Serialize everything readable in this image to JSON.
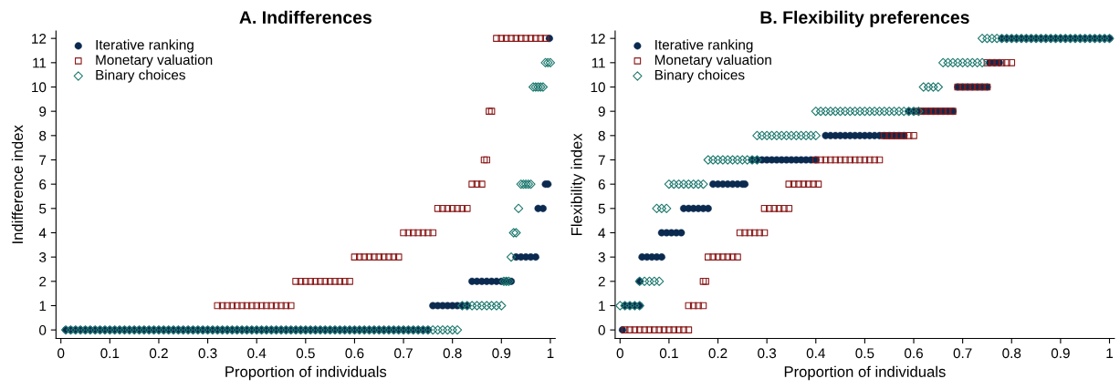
{
  "chart_data": [
    {
      "type": "scatter",
      "title": "A. Indifferences",
      "xlabel": "Proportion of individuals",
      "ylabel": "Indifference index",
      "xlim": [
        -0.01,
        1.01
      ],
      "ylim": [
        -0.35,
        12.3
      ],
      "xticks": [
        0,
        0.1,
        0.2,
        0.3,
        0.4,
        0.5,
        0.6,
        0.7,
        0.8,
        0.9,
        1
      ],
      "yticks": [
        0,
        1,
        2,
        3,
        4,
        5,
        6,
        7,
        8,
        9,
        10,
        11,
        12
      ],
      "grid": false,
      "legend": "top left",
      "series": [
        {
          "name": "Iterative ranking",
          "color": "#0b2a50",
          "marker": "circle",
          "x": [
            0.01,
            0.02,
            0.03,
            0.04,
            0.05,
            0.06,
            0.07,
            0.08,
            0.09,
            0.1,
            0.11,
            0.12,
            0.13,
            0.14,
            0.15,
            0.16,
            0.17,
            0.18,
            0.19,
            0.2,
            0.21,
            0.22,
            0.23,
            0.24,
            0.25,
            0.26,
            0.27,
            0.28,
            0.29,
            0.3,
            0.31,
            0.32,
            0.33,
            0.34,
            0.35,
            0.36,
            0.37,
            0.38,
            0.39,
            0.4,
            0.41,
            0.42,
            0.43,
            0.44,
            0.45,
            0.46,
            0.47,
            0.48,
            0.49,
            0.5,
            0.51,
            0.52,
            0.53,
            0.54,
            0.55,
            0.56,
            0.57,
            0.58,
            0.59,
            0.6,
            0.61,
            0.62,
            0.63,
            0.64,
            0.65,
            0.66,
            0.67,
            0.68,
            0.69,
            0.7,
            0.71,
            0.72,
            0.73,
            0.74,
            0.75,
            0.76,
            0.77,
            0.78,
            0.79,
            0.8,
            0.81,
            0.82,
            0.83,
            0.84,
            0.85,
            0.86,
            0.87,
            0.88,
            0.89,
            0.9,
            0.91,
            0.92,
            0.93,
            0.94,
            0.95,
            0.96,
            0.97,
            0.975,
            0.985,
            0.99,
            0.995,
            0.998
          ],
          "values": [
            0,
            0,
            0,
            0,
            0,
            0,
            0,
            0,
            0,
            0,
            0,
            0,
            0,
            0,
            0,
            0,
            0,
            0,
            0,
            0,
            0,
            0,
            0,
            0,
            0,
            0,
            0,
            0,
            0,
            0,
            0,
            0,
            0,
            0,
            0,
            0,
            0,
            0,
            0,
            0,
            0,
            0,
            0,
            0,
            0,
            0,
            0,
            0,
            0,
            0,
            0,
            0,
            0,
            0,
            0,
            0,
            0,
            0,
            0,
            0,
            0,
            0,
            0,
            0,
            0,
            0,
            0,
            0,
            0,
            0,
            0,
            0,
            0,
            0,
            0,
            1,
            1,
            1,
            1,
            1,
            1,
            1,
            1,
            2,
            2,
            2,
            2,
            2,
            2,
            2,
            2,
            2,
            3,
            3,
            3,
            3,
            3,
            5,
            5,
            6,
            6,
            12
          ]
        },
        {
          "name": "Monetary valuation",
          "color": "#8b1a1a",
          "marker": "square",
          "x": [
            0.32,
            0.33,
            0.34,
            0.35,
            0.36,
            0.37,
            0.38,
            0.39,
            0.4,
            0.41,
            0.42,
            0.43,
            0.44,
            0.45,
            0.46,
            0.47,
            0.48,
            0.49,
            0.5,
            0.51,
            0.52,
            0.53,
            0.54,
            0.55,
            0.56,
            0.57,
            0.58,
            0.59,
            0.6,
            0.61,
            0.62,
            0.63,
            0.64,
            0.65,
            0.66,
            0.67,
            0.68,
            0.69,
            0.7,
            0.71,
            0.72,
            0.73,
            0.74,
            0.75,
            0.76,
            0.77,
            0.78,
            0.79,
            0.8,
            0.81,
            0.82,
            0.83,
            0.84,
            0.85,
            0.86,
            0.865,
            0.87,
            0.875,
            0.88,
            0.89,
            0.9,
            0.91,
            0.92,
            0.93,
            0.94,
            0.95,
            0.96,
            0.97,
            0.98,
            0.99
          ],
          "values": [
            1,
            1,
            1,
            1,
            1,
            1,
            1,
            1,
            1,
            1,
            1,
            1,
            1,
            1,
            1,
            1,
            2,
            2,
            2,
            2,
            2,
            2,
            2,
            2,
            2,
            2,
            2,
            2,
            3,
            3,
            3,
            3,
            3,
            3,
            3,
            3,
            3,
            3,
            4,
            4,
            4,
            4,
            4,
            4,
            4,
            5,
            5,
            5,
            5,
            5,
            5,
            5,
            6,
            6,
            6,
            7,
            7,
            9,
            9,
            12,
            12,
            12,
            12,
            12,
            12,
            12,
            12,
            12,
            12,
            12
          ]
        },
        {
          "name": "Binary choices",
          "color": "#1f7a70",
          "marker": "diamond",
          "x": [
            0.01,
            0.02,
            0.03,
            0.04,
            0.05,
            0.06,
            0.07,
            0.08,
            0.09,
            0.1,
            0.11,
            0.12,
            0.13,
            0.14,
            0.15,
            0.16,
            0.17,
            0.18,
            0.19,
            0.2,
            0.21,
            0.22,
            0.23,
            0.24,
            0.25,
            0.26,
            0.27,
            0.28,
            0.29,
            0.3,
            0.31,
            0.32,
            0.33,
            0.34,
            0.35,
            0.36,
            0.37,
            0.38,
            0.39,
            0.4,
            0.41,
            0.42,
            0.43,
            0.44,
            0.45,
            0.46,
            0.47,
            0.48,
            0.49,
            0.5,
            0.51,
            0.52,
            0.53,
            0.54,
            0.55,
            0.56,
            0.57,
            0.58,
            0.59,
            0.6,
            0.61,
            0.62,
            0.63,
            0.64,
            0.65,
            0.66,
            0.67,
            0.68,
            0.69,
            0.7,
            0.71,
            0.72,
            0.73,
            0.74,
            0.75,
            0.76,
            0.77,
            0.78,
            0.79,
            0.8,
            0.81,
            0.82,
            0.83,
            0.84,
            0.85,
            0.86,
            0.87,
            0.88,
            0.89,
            0.9,
            0.905,
            0.91,
            0.915,
            0.92,
            0.925,
            0.93,
            0.935,
            0.94,
            0.945,
            0.95,
            0.955,
            0.96,
            0.965,
            0.97,
            0.975,
            0.98,
            0.985,
            0.99,
            0.995,
            1.0
          ],
          "values": [
            0,
            0,
            0,
            0,
            0,
            0,
            0,
            0,
            0,
            0,
            0,
            0,
            0,
            0,
            0,
            0,
            0,
            0,
            0,
            0,
            0,
            0,
            0,
            0,
            0,
            0,
            0,
            0,
            0,
            0,
            0,
            0,
            0,
            0,
            0,
            0,
            0,
            0,
            0,
            0,
            0,
            0,
            0,
            0,
            0,
            0,
            0,
            0,
            0,
            0,
            0,
            0,
            0,
            0,
            0,
            0,
            0,
            0,
            0,
            0,
            0,
            0,
            0,
            0,
            0,
            0,
            0,
            0,
            0,
            0,
            0,
            0,
            0,
            0,
            0,
            0,
            0,
            0,
            0,
            0,
            0,
            1,
            1,
            1,
            1,
            1,
            1,
            1,
            1,
            1,
            2,
            2,
            2,
            3,
            4,
            4,
            5,
            6,
            6,
            6,
            6,
            6,
            10,
            10,
            10,
            10,
            10,
            11,
            11,
            11
          ]
        }
      ]
    },
    {
      "type": "scatter",
      "title": "B. Flexibility preferences",
      "xlabel": "Proportion of individuals",
      "ylabel": "Flexibility index",
      "xlim": [
        -0.01,
        1.01
      ],
      "ylim": [
        -0.35,
        12.3
      ],
      "xticks": [
        0,
        0.1,
        0.2,
        0.3,
        0.4,
        0.5,
        0.6,
        0.7,
        0.8,
        0.9,
        1
      ],
      "yticks": [
        0,
        1,
        2,
        3,
        4,
        5,
        6,
        7,
        8,
        9,
        10,
        11,
        12
      ],
      "grid": false,
      "legend": "top left",
      "series": [
        {
          "name": "Iterative ranking",
          "color": "#0b2a50",
          "marker": "circle",
          "x": [
            0.005,
            0.01,
            0.02,
            0.03,
            0.04,
            0.04,
            0.045,
            0.055,
            0.065,
            0.075,
            0.085,
            0.085,
            0.095,
            0.105,
            0.115,
            0.125,
            0.13,
            0.14,
            0.15,
            0.16,
            0.17,
            0.18,
            0.19,
            0.2,
            0.21,
            0.22,
            0.23,
            0.24,
            0.25,
            0.255,
            0.27,
            0.28,
            0.29,
            0.3,
            0.31,
            0.32,
            0.33,
            0.34,
            0.35,
            0.36,
            0.37,
            0.38,
            0.39,
            0.4,
            0.42,
            0.43,
            0.44,
            0.45,
            0.46,
            0.47,
            0.48,
            0.49,
            0.5,
            0.51,
            0.52,
            0.53,
            0.54,
            0.55,
            0.56,
            0.57,
            0.58,
            0.59,
            0.6,
            0.61,
            0.62,
            0.63,
            0.64,
            0.65,
            0.66,
            0.67,
            0.68,
            0.69,
            0.7,
            0.71,
            0.72,
            0.73,
            0.74,
            0.75,
            0.755,
            0.765,
            0.775,
            0.78,
            0.79,
            0.8,
            0.81,
            0.82,
            0.83,
            0.84,
            0.85,
            0.86,
            0.87,
            0.88,
            0.89,
            0.9,
            0.91,
            0.92,
            0.93,
            0.94,
            0.95,
            0.96,
            0.97,
            0.98,
            0.99,
            1.0
          ],
          "values": [
            0,
            1,
            1,
            1,
            1,
            2,
            3,
            3,
            3,
            3,
            3,
            4,
            4,
            4,
            4,
            4,
            5,
            5,
            5,
            5,
            5,
            5,
            6,
            6,
            6,
            6,
            6,
            6,
            6,
            6,
            7,
            7,
            7,
            7,
            7,
            7,
            7,
            7,
            7,
            7,
            7,
            7,
            7,
            7,
            8,
            8,
            8,
            8,
            8,
            8,
            8,
            8,
            8,
            8,
            8,
            8,
            8,
            8,
            8,
            8,
            8,
            9,
            9,
            9,
            9,
            9,
            9,
            9,
            9,
            9,
            9,
            10,
            10,
            10,
            10,
            10,
            10,
            10,
            11,
            11,
            11,
            12,
            12,
            12,
            12,
            12,
            12,
            12,
            12,
            12,
            12,
            12,
            12,
            12,
            12,
            12,
            12,
            12,
            12,
            12,
            12,
            12,
            12,
            12
          ]
        },
        {
          "name": "Monetary valuation",
          "color": "#8b1a1a",
          "marker": "square",
          "x": [
            0.01,
            0.02,
            0.03,
            0.04,
            0.05,
            0.06,
            0.07,
            0.08,
            0.09,
            0.1,
            0.11,
            0.12,
            0.13,
            0.14,
            0.14,
            0.15,
            0.16,
            0.17,
            0.17,
            0.175,
            0.18,
            0.19,
            0.2,
            0.21,
            0.22,
            0.23,
            0.24,
            0.245,
            0.255,
            0.265,
            0.275,
            0.285,
            0.295,
            0.295,
            0.305,
            0.315,
            0.325,
            0.335,
            0.345,
            0.345,
            0.355,
            0.365,
            0.375,
            0.385,
            0.395,
            0.405,
            0.4,
            0.41,
            0.42,
            0.43,
            0.44,
            0.45,
            0.46,
            0.47,
            0.48,
            0.49,
            0.5,
            0.51,
            0.52,
            0.53,
            0.54,
            0.55,
            0.56,
            0.57,
            0.58,
            0.59,
            0.6,
            0.61,
            0.62,
            0.63,
            0.64,
            0.65,
            0.66,
            0.67,
            0.68,
            0.69,
            0.7,
            0.71,
            0.72,
            0.73,
            0.74,
            0.75,
            0.75,
            0.76,
            0.77,
            0.78,
            0.79,
            0.8
          ],
          "values": [
            0,
            0,
            0,
            0,
            0,
            0,
            0,
            0,
            0,
            0,
            0,
            0,
            0,
            0,
            1,
            1,
            1,
            1,
            2,
            2,
            3,
            3,
            3,
            3,
            3,
            3,
            3,
            4,
            4,
            4,
            4,
            4,
            4,
            5,
            5,
            5,
            5,
            5,
            5,
            6,
            6,
            6,
            6,
            6,
            6,
            6,
            7,
            7,
            7,
            7,
            7,
            7,
            7,
            7,
            7,
            7,
            7,
            7,
            7,
            7,
            8,
            8,
            8,
            8,
            8,
            8,
            8,
            9,
            9,
            9,
            9,
            9,
            9,
            9,
            9,
            10,
            10,
            10,
            10,
            10,
            10,
            10,
            11,
            11,
            11,
            11,
            11,
            11
          ]
        },
        {
          "name": "Binary choices",
          "color": "#1f7a70",
          "marker": "diamond",
          "x": [
            0.0,
            0.01,
            0.02,
            0.03,
            0.04,
            0.04,
            0.05,
            0.06,
            0.07,
            0.08,
            0.075,
            0.085,
            0.095,
            0.1,
            0.11,
            0.12,
            0.13,
            0.14,
            0.15,
            0.16,
            0.17,
            0.18,
            0.19,
            0.2,
            0.21,
            0.22,
            0.23,
            0.24,
            0.25,
            0.26,
            0.27,
            0.28,
            0.28,
            0.29,
            0.3,
            0.31,
            0.32,
            0.33,
            0.34,
            0.35,
            0.36,
            0.37,
            0.38,
            0.39,
            0.4,
            0.4,
            0.41,
            0.42,
            0.43,
            0.44,
            0.45,
            0.46,
            0.47,
            0.48,
            0.49,
            0.5,
            0.51,
            0.52,
            0.53,
            0.54,
            0.55,
            0.56,
            0.57,
            0.58,
            0.59,
            0.6,
            0.61,
            0.62,
            0.63,
            0.64,
            0.65,
            0.66,
            0.67,
            0.68,
            0.69,
            0.7,
            0.71,
            0.72,
            0.73,
            0.74,
            0.74,
            0.75,
            0.76,
            0.77,
            0.78,
            0.79,
            0.8,
            0.81,
            0.82,
            0.83,
            0.84,
            0.85,
            0.86,
            0.87,
            0.88,
            0.89,
            0.9,
            0.91,
            0.92,
            0.93,
            0.94,
            0.95,
            0.96,
            0.97,
            0.98,
            0.99,
            1.0
          ],
          "values": [
            1,
            1,
            1,
            1,
            1,
            2,
            2,
            2,
            2,
            2,
            5,
            5,
            5,
            6,
            6,
            6,
            6,
            6,
            6,
            6,
            6,
            7,
            7,
            7,
            7,
            7,
            7,
            7,
            7,
            7,
            7,
            7,
            8,
            8,
            8,
            8,
            8,
            8,
            8,
            8,
            8,
            8,
            8,
            8,
            8,
            9,
            9,
            9,
            9,
            9,
            9,
            9,
            9,
            9,
            9,
            9,
            9,
            9,
            9,
            9,
            9,
            9,
            9,
            9,
            9,
            9,
            9,
            10,
            10,
            10,
            10,
            11,
            11,
            11,
            11,
            11,
            11,
            11,
            11,
            11,
            12,
            12,
            12,
            12,
            12,
            12,
            12,
            12,
            12,
            12,
            12,
            12,
            12,
            12,
            12,
            12,
            12,
            12,
            12,
            12,
            12,
            12,
            12,
            12,
            12,
            12,
            12
          ]
        }
      ]
    }
  ]
}
